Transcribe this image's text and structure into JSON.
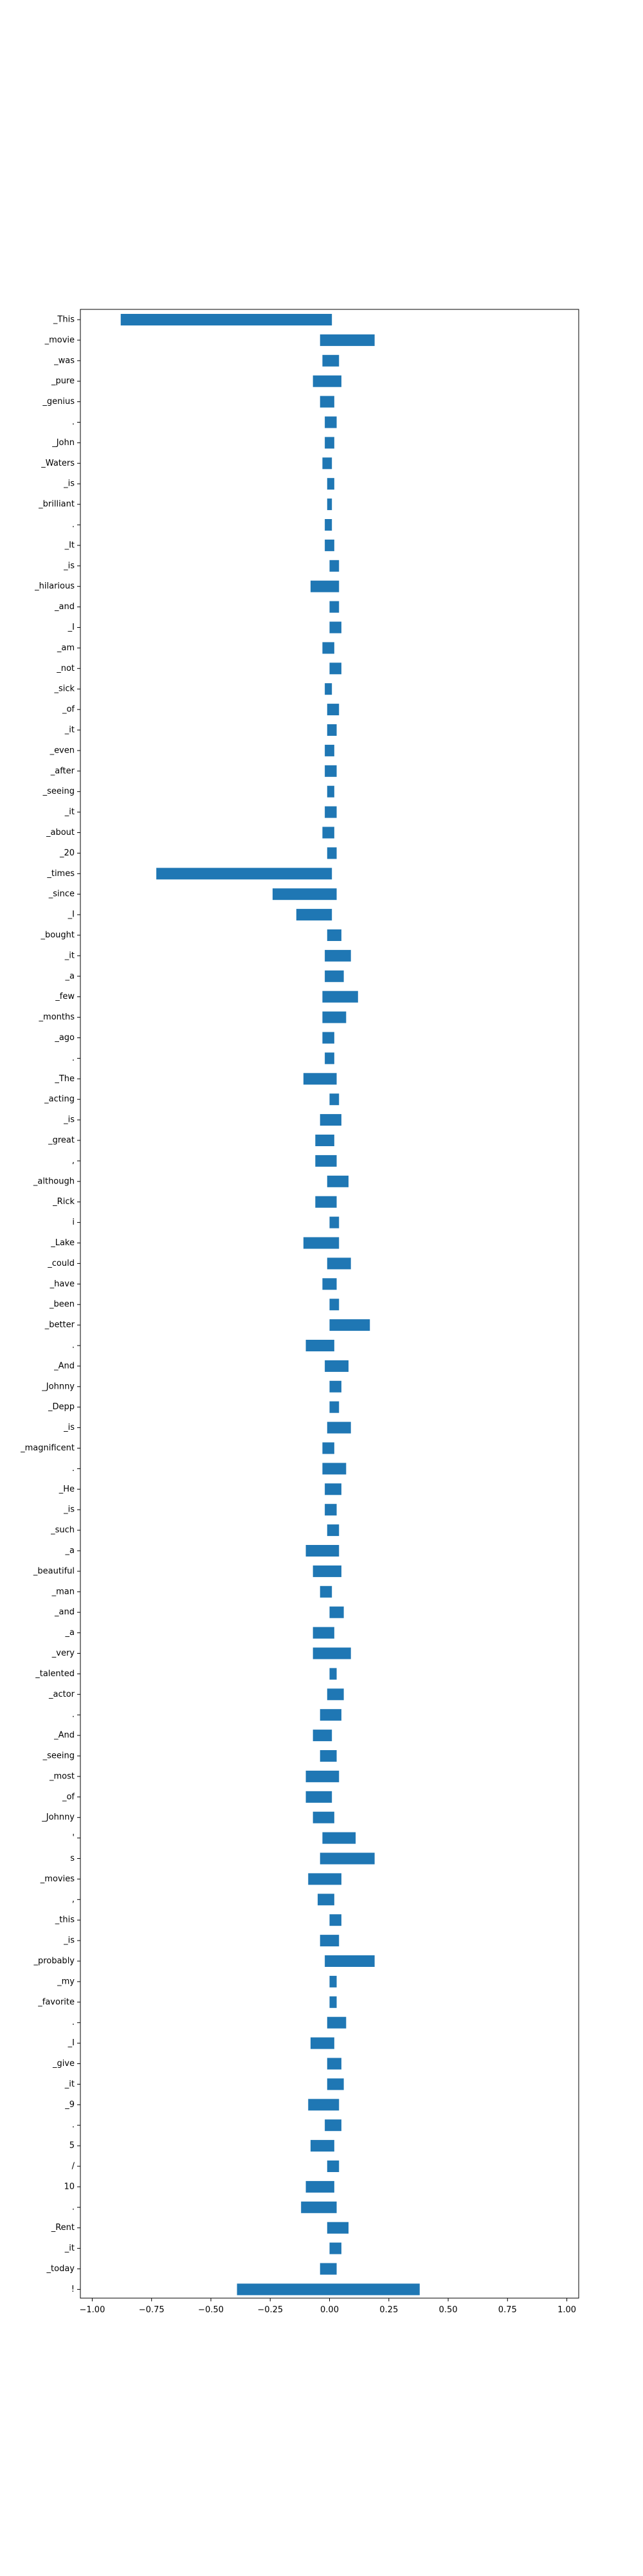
{
  "chart_data": {
    "type": "bar",
    "orientation": "horizontal",
    "bar_type": "floating",
    "title": "",
    "xlabel": "",
    "ylabel": "",
    "xlim": [
      -1.05,
      1.05
    ],
    "xticks": [
      -1.0,
      -0.75,
      -0.5,
      -0.25,
      0.0,
      0.25,
      0.5,
      0.75,
      1.0
    ],
    "xtick_labels": [
      "−1.00",
      "−0.75",
      "−0.50",
      "−0.25",
      "0.00",
      "0.25",
      "0.50",
      "0.75",
      "1.00"
    ],
    "grid": false,
    "legend": "none",
    "bar_color": "#1f77b4",
    "categories": [
      "_This",
      "_movie",
      "_was",
      "_pure",
      "_genius",
      ".",
      "_John",
      "_Waters",
      "_is",
      "_brilliant",
      ".",
      "_It",
      "_is",
      "_hilarious",
      "_and",
      "_I",
      "_am",
      "_not",
      "_sick",
      "_of",
      "_it",
      "_even",
      "_after",
      "_seeing",
      "_it",
      "_about",
      "_20",
      "_times",
      "_since",
      "_I",
      "_bought",
      "_it",
      "_a",
      "_few",
      "_months",
      "_ago",
      ".",
      "_The",
      "_acting",
      "_is",
      "_great",
      ",",
      "_although",
      "_Rick",
      "i",
      "_Lake",
      "_could",
      "_have",
      "_been",
      "_better",
      ".",
      "_And",
      "_Johnny",
      "_Depp",
      "_is",
      "_magnificent",
      ".",
      "_He",
      "_is",
      "_such",
      "_a",
      "_beautiful",
      "_man",
      "_and",
      "_a",
      "_very",
      "_talented",
      "_actor",
      ".",
      "_And",
      "_seeing",
      "_most",
      "_of",
      "_Johnny",
      "'",
      "s",
      "_movies",
      ",",
      "_this",
      "_is",
      "_probably",
      "_my",
      "_favorite",
      ".",
      "_I",
      "_give",
      "_it",
      "_9",
      ".",
      "5",
      "/",
      "10",
      ".",
      "_Rent",
      "_it",
      "_today",
      "!"
    ],
    "bars": [
      {
        "start": 0.01,
        "end": -0.88
      },
      {
        "start": -0.04,
        "end": 0.19
      },
      {
        "start": -0.03,
        "end": 0.04
      },
      {
        "start": -0.07,
        "end": 0.05
      },
      {
        "start": -0.04,
        "end": 0.02
      },
      {
        "start": -0.02,
        "end": 0.03
      },
      {
        "start": -0.02,
        "end": 0.02
      },
      {
        "start": -0.03,
        "end": 0.01
      },
      {
        "start": -0.01,
        "end": 0.02
      },
      {
        "start": -0.01,
        "end": 0.01
      },
      {
        "start": -0.02,
        "end": 0.01
      },
      {
        "start": -0.02,
        "end": 0.02
      },
      {
        "start": 0.0,
        "end": 0.04
      },
      {
        "start": -0.08,
        "end": 0.04
      },
      {
        "start": 0.0,
        "end": 0.04
      },
      {
        "start": 0.0,
        "end": 0.05
      },
      {
        "start": -0.03,
        "end": 0.02
      },
      {
        "start": 0.0,
        "end": 0.05
      },
      {
        "start": -0.02,
        "end": 0.01
      },
      {
        "start": -0.01,
        "end": 0.04
      },
      {
        "start": -0.01,
        "end": 0.03
      },
      {
        "start": -0.02,
        "end": 0.02
      },
      {
        "start": -0.02,
        "end": 0.03
      },
      {
        "start": -0.01,
        "end": 0.02
      },
      {
        "start": -0.02,
        "end": 0.03
      },
      {
        "start": -0.03,
        "end": 0.02
      },
      {
        "start": -0.01,
        "end": 0.03
      },
      {
        "start": 0.01,
        "end": -0.73
      },
      {
        "start": 0.03,
        "end": -0.24
      },
      {
        "start": 0.01,
        "end": -0.14
      },
      {
        "start": -0.01,
        "end": 0.05
      },
      {
        "start": -0.02,
        "end": 0.09
      },
      {
        "start": -0.02,
        "end": 0.06
      },
      {
        "start": -0.03,
        "end": 0.12
      },
      {
        "start": -0.03,
        "end": 0.07
      },
      {
        "start": -0.03,
        "end": 0.02
      },
      {
        "start": -0.02,
        "end": 0.02
      },
      {
        "start": -0.11,
        "end": 0.03
      },
      {
        "start": 0.0,
        "end": 0.04
      },
      {
        "start": -0.04,
        "end": 0.05
      },
      {
        "start": -0.06,
        "end": 0.02
      },
      {
        "start": -0.06,
        "end": 0.03
      },
      {
        "start": -0.01,
        "end": 0.08
      },
      {
        "start": -0.06,
        "end": 0.03
      },
      {
        "start": 0.0,
        "end": 0.04
      },
      {
        "start": -0.11,
        "end": 0.04
      },
      {
        "start": -0.01,
        "end": 0.09
      },
      {
        "start": -0.03,
        "end": 0.03
      },
      {
        "start": 0.0,
        "end": 0.04
      },
      {
        "start": 0.0,
        "end": 0.17
      },
      {
        "start": -0.1,
        "end": 0.02
      },
      {
        "start": -0.02,
        "end": 0.08
      },
      {
        "start": 0.0,
        "end": 0.05
      },
      {
        "start": 0.0,
        "end": 0.04
      },
      {
        "start": -0.01,
        "end": 0.09
      },
      {
        "start": -0.03,
        "end": 0.02
      },
      {
        "start": -0.03,
        "end": 0.07
      },
      {
        "start": -0.02,
        "end": 0.05
      },
      {
        "start": -0.02,
        "end": 0.03
      },
      {
        "start": -0.01,
        "end": 0.04
      },
      {
        "start": -0.1,
        "end": 0.04
      },
      {
        "start": -0.07,
        "end": 0.05
      },
      {
        "start": -0.04,
        "end": 0.01
      },
      {
        "start": 0.0,
        "end": 0.06
      },
      {
        "start": -0.07,
        "end": 0.02
      },
      {
        "start": -0.07,
        "end": 0.09
      },
      {
        "start": 0.0,
        "end": 0.03
      },
      {
        "start": -0.01,
        "end": 0.06
      },
      {
        "start": -0.04,
        "end": 0.05
      },
      {
        "start": -0.07,
        "end": 0.01
      },
      {
        "start": -0.04,
        "end": 0.03
      },
      {
        "start": -0.1,
        "end": 0.04
      },
      {
        "start": -0.1,
        "end": 0.01
      },
      {
        "start": -0.07,
        "end": 0.02
      },
      {
        "start": -0.03,
        "end": 0.11
      },
      {
        "start": -0.04,
        "end": 0.19
      },
      {
        "start": -0.09,
        "end": 0.05
      },
      {
        "start": -0.05,
        "end": 0.02
      },
      {
        "start": 0.0,
        "end": 0.05
      },
      {
        "start": -0.04,
        "end": 0.04
      },
      {
        "start": -0.02,
        "end": 0.19
      },
      {
        "start": 0.0,
        "end": 0.03
      },
      {
        "start": 0.0,
        "end": 0.03
      },
      {
        "start": -0.01,
        "end": 0.07
      },
      {
        "start": -0.08,
        "end": 0.02
      },
      {
        "start": -0.01,
        "end": 0.05
      },
      {
        "start": -0.01,
        "end": 0.06
      },
      {
        "start": -0.09,
        "end": 0.04
      },
      {
        "start": -0.02,
        "end": 0.05
      },
      {
        "start": -0.08,
        "end": 0.02
      },
      {
        "start": -0.01,
        "end": 0.04
      },
      {
        "start": -0.1,
        "end": 0.02
      },
      {
        "start": -0.12,
        "end": 0.03
      },
      {
        "start": -0.01,
        "end": 0.08
      },
      {
        "start": 0.0,
        "end": 0.05
      },
      {
        "start": -0.04,
        "end": 0.03
      },
      {
        "start": -0.39,
        "end": 0.38
      }
    ]
  }
}
